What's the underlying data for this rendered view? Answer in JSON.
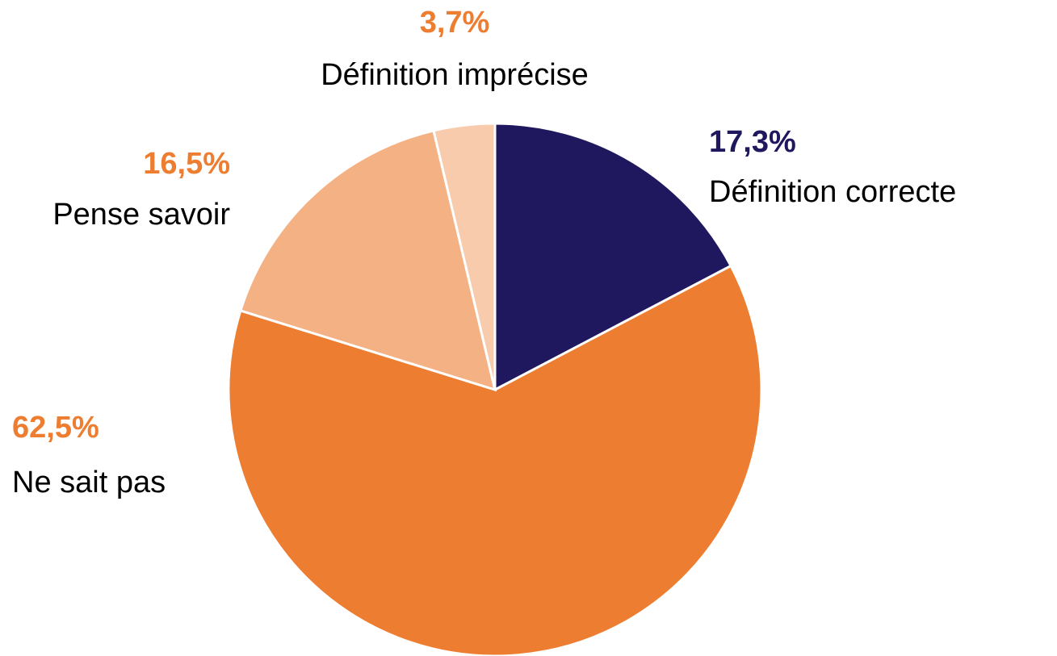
{
  "chart_data": {
    "type": "pie",
    "categories": [
      "Définition correcte",
      "Ne sait pas",
      "Pense savoir",
      "Définition imprécise"
    ],
    "values": [
      17.3,
      62.5,
      16.5,
      3.7
    ],
    "value_labels": [
      "17,3%",
      "62,5%",
      "16,5%",
      "3,7%"
    ],
    "colors": [
      "#1f185e",
      "#ed7d31",
      "#f4b183",
      "#f8cbad"
    ],
    "label_colors": [
      "#1f185e",
      "#ed7d31",
      "#ed7d31",
      "#ed7d31"
    ]
  }
}
